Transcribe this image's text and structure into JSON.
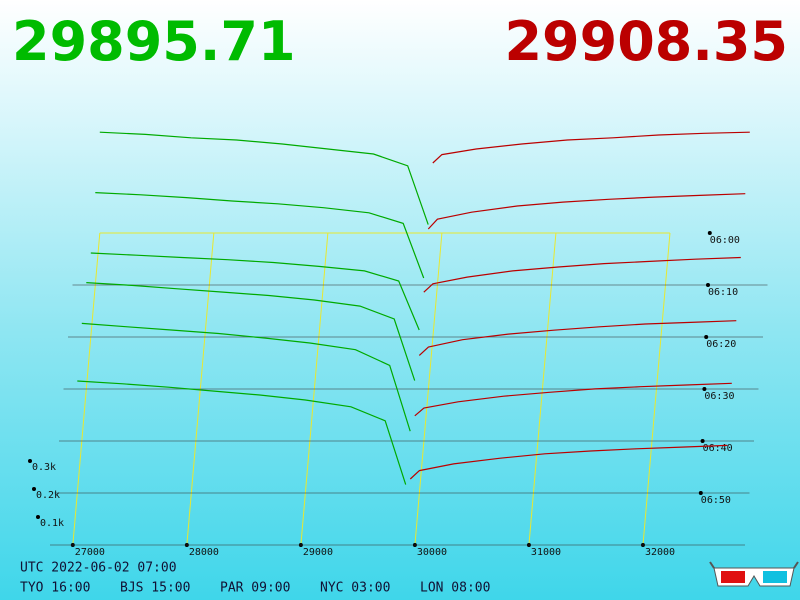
{
  "chart_data": {
    "type": "depth3d",
    "bid_price": "29895.71",
    "ask_price": "29908.35",
    "xlim": [
      26800,
      33000
    ],
    "xticks": [
      27000,
      28000,
      29000,
      30000,
      31000,
      32000
    ],
    "ylim": [
      0,
      1000
    ],
    "yticks": [
      {
        "value": 100,
        "label": "0.1k"
      },
      {
        "value": 200,
        "label": "0.2k"
      },
      {
        "value": 300,
        "label": "0.3k"
      }
    ],
    "times": [
      "06:00",
      "06:10",
      "06:20",
      "06:30",
      "06:40",
      "06:50"
    ],
    "bids": {
      "color": "#00aa00",
      "prices": [
        27000,
        27400,
        27800,
        28200,
        28600,
        29000,
        29400,
        29700,
        29880
      ],
      "rows": [
        [
          360,
          352,
          340,
          332,
          318,
          300,
          282,
          240,
          30
        ],
        [
          330,
          322,
          312,
          300,
          290,
          276,
          258,
          220,
          25
        ],
        [
          300,
          292,
          284,
          276,
          266,
          252,
          236,
          200,
          25
        ],
        [
          380,
          370,
          358,
          346,
          334,
          318,
          296,
          250,
          30
        ],
        [
          420,
          408,
          396,
          384,
          368,
          350,
          326,
          270,
          35
        ],
        [
          400,
          390,
          378,
          364,
          350,
          332,
          308,
          258,
          30
        ]
      ]
    },
    "asks": {
      "color": "#bb0000",
      "prices": [
        29920,
        30000,
        30300,
        30700,
        31100,
        31500,
        31900,
        32300,
        32700
      ],
      "rows": [
        [
          250,
          280,
          300,
          318,
          332,
          340,
          350,
          356,
          360
        ],
        [
          200,
          235,
          260,
          282,
          296,
          306,
          314,
          320,
          326
        ],
        [
          160,
          190,
          214,
          236,
          250,
          262,
          270,
          278,
          284
        ],
        [
          120,
          150,
          176,
          196,
          210,
          222,
          232,
          238,
          244
        ],
        [
          90,
          118,
          140,
          160,
          174,
          186,
          194,
          200,
          206
        ],
        [
          50,
          80,
          104,
          124,
          140,
          150,
          158,
          164,
          170
        ]
      ]
    }
  },
  "footer": {
    "utc": "UTC 2022-06-02 07:00",
    "cities": [
      "TYO 16:00",
      "BJS 15:00",
      "PAR 09:00",
      "NYC 03:00",
      "LON 08:00"
    ]
  }
}
